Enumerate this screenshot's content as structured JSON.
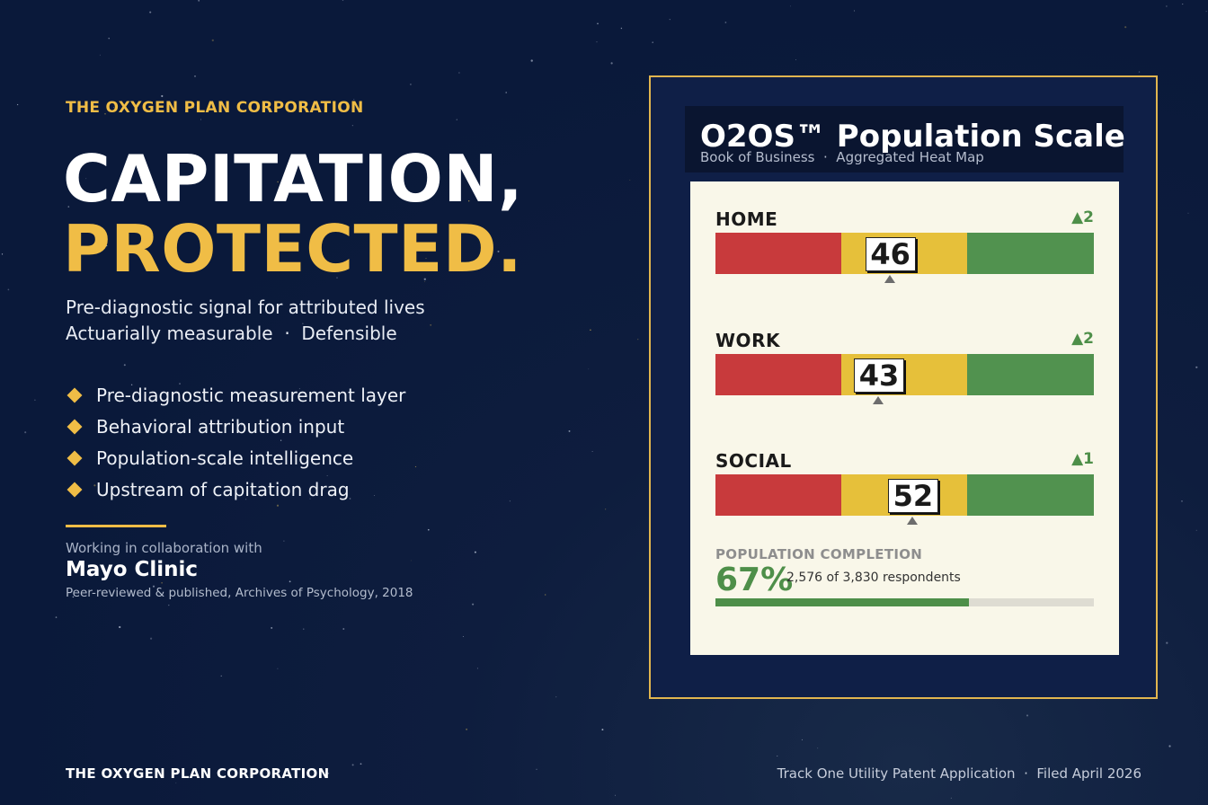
{
  "brand": {
    "eyebrow": "THE OXYGEN PLAN CORPORATION",
    "accent_color": "#f0bd46"
  },
  "hero": {
    "line1": "CAPITATION,",
    "line2": "PROTECTED.",
    "sub1": "Pre-diagnostic signal for attributed lives",
    "sub2": "Actuarially measurable  ·  Defensible"
  },
  "bullets": [
    "Pre-diagnostic measurement layer",
    "Behavioral attribution input",
    "Population-scale intelligence",
    "Upstream of capitation drag"
  ],
  "collab": {
    "label": "Working in collaboration with",
    "partner": "Mayo Clinic",
    "note": "Peer-reviewed & published, Archives of Psychology, 2018"
  },
  "footer": {
    "left": "THE OXYGEN PLAN CORPORATION",
    "right": "Track One Utility Patent Application  ·  Filed April 2026"
  },
  "panel": {
    "title": "O2OS™ Population Scale",
    "subtitle": "Book of Business  ·  Aggregated Heat Map",
    "scale_max": 100,
    "colors": {
      "red": "#c83a3c",
      "yellow": "#e6c03a",
      "green": "#51924f"
    },
    "metrics": [
      {
        "label": "HOME",
        "value": 46,
        "delta": "▲2"
      },
      {
        "label": "WORK",
        "value": 43,
        "delta": "▲2"
      },
      {
        "label": "SOCIAL",
        "value": 52,
        "delta": "▲1"
      }
    ],
    "completion": {
      "label": "POPULATION COMPLETION",
      "percent_text": "67%",
      "fraction": 0.67,
      "respondents": "2,576 of 3,830 respondents"
    }
  }
}
